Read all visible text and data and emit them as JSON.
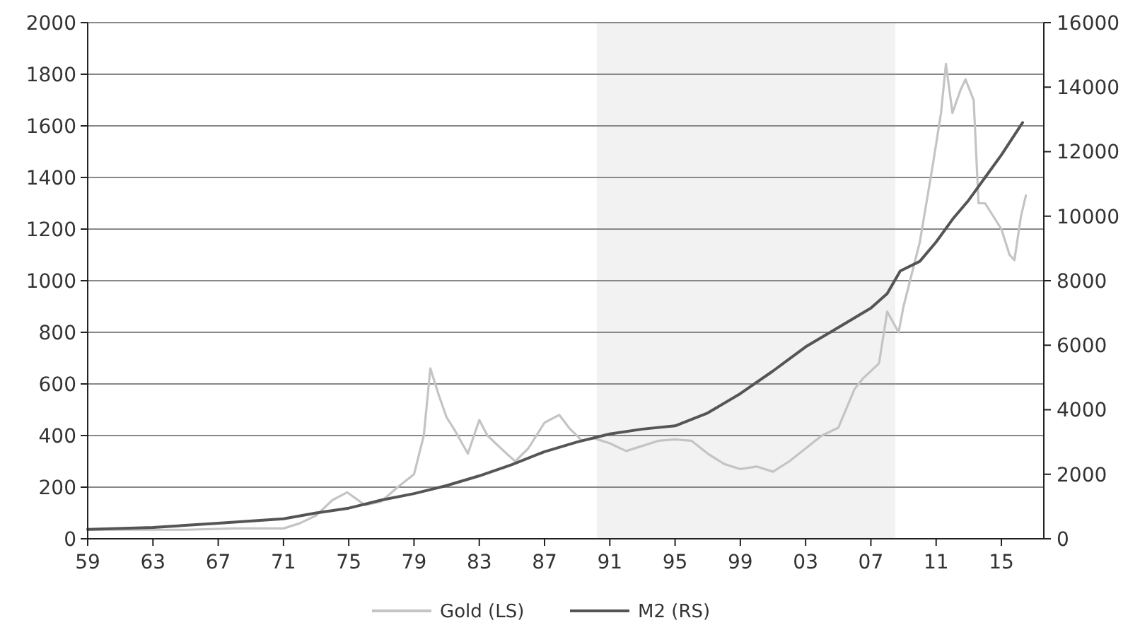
{
  "chart_data": {
    "type": "line",
    "xlim": [
      1959,
      2017.6
    ],
    "xticks": [
      {
        "value": 1959,
        "label": "59"
      },
      {
        "value": 1963,
        "label": "63"
      },
      {
        "value": 1967,
        "label": "67"
      },
      {
        "value": 1971,
        "label": "71"
      },
      {
        "value": 1975,
        "label": "75"
      },
      {
        "value": 1979,
        "label": "79"
      },
      {
        "value": 1983,
        "label": "83"
      },
      {
        "value": 1987,
        "label": "87"
      },
      {
        "value": 1991,
        "label": "91"
      },
      {
        "value": 1995,
        "label": "95"
      },
      {
        "value": 1999,
        "label": "99"
      },
      {
        "value": 2003,
        "label": "03"
      },
      {
        "value": 2007,
        "label": "07"
      },
      {
        "value": 2011,
        "label": "11"
      },
      {
        "value": 2015,
        "label": "15"
      }
    ],
    "ylim": [
      0,
      2000
    ],
    "yticks": [
      0,
      200,
      400,
      600,
      800,
      1000,
      1200,
      1400,
      1600,
      1800,
      2000
    ],
    "y2lim": [
      0,
      16000
    ],
    "y2ticks": [
      0,
      2000,
      4000,
      6000,
      8000,
      10000,
      12000,
      14000,
      16000
    ],
    "grid": "y",
    "legend": "bottom",
    "bands": [
      {
        "axis": "x",
        "from": 1990.2,
        "to": 2008.5,
        "color": "#f2f2f2"
      }
    ],
    "series": [
      {
        "name": "Gold (LS)",
        "color": "#c4c4c4",
        "x": [
          1959,
          1965,
          1968,
          1971,
          1972,
          1973,
          1974,
          1974.9,
          1976,
          1977,
          1978,
          1979,
          1979.6,
          1980,
          1980.5,
          1981,
          1981.5,
          1982.3,
          1983,
          1983.5,
          1984.5,
          1985.2,
          1986,
          1987,
          1987.9,
          1988.5,
          1989.3,
          1990,
          1991,
          1992,
          1993,
          1994,
          1995,
          1996,
          1997,
          1998,
          1999,
          2000,
          2001,
          2002,
          2003,
          2004,
          2005,
          2006,
          2006.5,
          2007.5,
          2008,
          2008.7,
          2009,
          2010,
          2010.8,
          2011.3,
          2011.6,
          2012,
          2012.5,
          2012.8,
          2013.3,
          2013.6,
          2014,
          2014.5,
          2015,
          2015.5,
          2015.8,
          2016.2,
          2016.5
        ],
        "values": [
          35,
          35,
          40,
          40,
          60,
          90,
          150,
          180,
          130,
          145,
          200,
          250,
          400,
          660,
          560,
          470,
          420,
          330,
          460,
          400,
          340,
          300,
          350,
          450,
          480,
          430,
          380,
          390,
          370,
          340,
          360,
          380,
          385,
          380,
          330,
          290,
          270,
          280,
          260,
          300,
          350,
          400,
          430,
          580,
          620,
          680,
          880,
          800,
          900,
          1150,
          1450,
          1650,
          1840,
          1650,
          1740,
          1780,
          1700,
          1300,
          1300,
          1250,
          1200,
          1100,
          1080,
          1250,
          1330
        ]
      },
      {
        "name": "M2 (RS)",
        "color": "#555555",
        "axis": "y2",
        "x": [
          1959,
          1963,
          1967,
          1971,
          1973,
          1975,
          1977,
          1979,
          1981,
          1983,
          1985,
          1987,
          1989,
          1991,
          1993,
          1995,
          1997,
          1999,
          2001,
          2003,
          2005,
          2007,
          2008,
          2008.8,
          2010,
          2011,
          2012,
          2013,
          2014,
          2015,
          2016.3
        ],
        "values": [
          290,
          350,
          480,
          620,
          800,
          950,
          1200,
          1400,
          1650,
          1950,
          2300,
          2700,
          3000,
          3250,
          3400,
          3500,
          3900,
          4500,
          5200,
          5950,
          6550,
          7150,
          7600,
          8300,
          8600,
          9200,
          9900,
          10500,
          11200,
          11900,
          12900
        ]
      }
    ]
  }
}
